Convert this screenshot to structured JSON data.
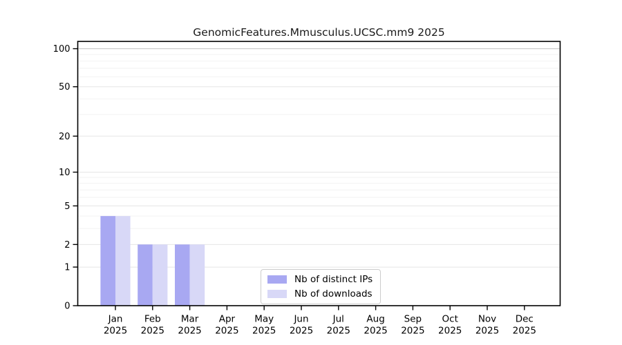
{
  "title": "GenomicFeatures.Mmusculus.UCSC.mm9 2025",
  "chart_data": {
    "type": "bar",
    "title": "GenomicFeatures.Mmusculus.UCSC.mm9 2025",
    "categories": [
      "Jan",
      "Feb",
      "Mar",
      "Apr",
      "May",
      "Jun",
      "Jul",
      "Aug",
      "Sep",
      "Oct",
      "Nov",
      "Dec"
    ],
    "year": "2025",
    "series": [
      {
        "name": "Nb of distinct IPs",
        "color": "#a8a8f2",
        "values": [
          4,
          2,
          2,
          0,
          0,
          0,
          0,
          0,
          0,
          0,
          0,
          0
        ]
      },
      {
        "name": "Nb of downloads",
        "color": "#d8d8f7",
        "values": [
          4,
          2,
          2,
          0,
          0,
          0,
          0,
          0,
          0,
          0,
          0,
          0
        ]
      }
    ],
    "yscale": "log1p",
    "ylim": [
      0,
      114
    ],
    "yticks": [
      0,
      1,
      2,
      5,
      10,
      20,
      50,
      100
    ],
    "grid": true,
    "gridlines_major": [
      1,
      2,
      5,
      10,
      20,
      50
    ],
    "gridlines_minor": [
      3,
      4,
      6,
      7,
      8,
      9,
      30,
      40,
      60,
      70,
      80,
      90
    ],
    "gridline_top": 100,
    "legend_position": "bottom-center-inside",
    "colors": {
      "grid_minor": "#f2f2f2",
      "grid_major": "#e5e5e5",
      "grid_top": "#c9c9c9",
      "axis": "#000000",
      "legend_border": "#cccccc"
    }
  }
}
